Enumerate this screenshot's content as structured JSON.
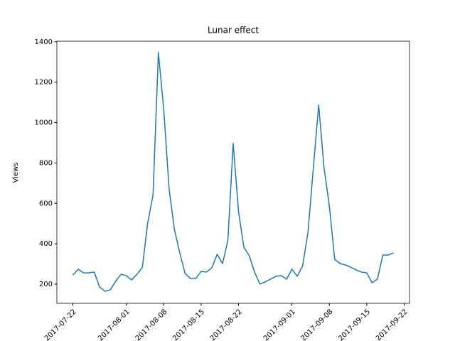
{
  "chart_data": {
    "type": "line",
    "title": "Lunar effect",
    "y_label": "Views",
    "x": [
      "2017-07-22",
      "2017-07-23",
      "2017-07-24",
      "2017-07-25",
      "2017-07-26",
      "2017-07-27",
      "2017-07-28",
      "2017-07-29",
      "2017-07-30",
      "2017-07-31",
      "2017-08-01",
      "2017-08-02",
      "2017-08-03",
      "2017-08-04",
      "2017-08-05",
      "2017-08-06",
      "2017-08-07",
      "2017-08-08",
      "2017-08-09",
      "2017-08-10",
      "2017-08-11",
      "2017-08-12",
      "2017-08-13",
      "2017-08-14",
      "2017-08-15",
      "2017-08-16",
      "2017-08-17",
      "2017-08-18",
      "2017-08-19",
      "2017-08-20",
      "2017-08-21",
      "2017-08-22",
      "2017-08-23",
      "2017-08-24",
      "2017-08-25",
      "2017-08-26",
      "2017-08-27",
      "2017-08-28",
      "2017-08-29",
      "2017-08-30",
      "2017-08-31",
      "2017-09-01",
      "2017-09-02",
      "2017-09-03",
      "2017-09-04",
      "2017-09-05",
      "2017-09-06",
      "2017-09-07",
      "2017-09-08",
      "2017-09-09",
      "2017-09-10",
      "2017-09-11",
      "2017-09-12",
      "2017-09-13",
      "2017-09-14",
      "2017-09-15",
      "2017-09-16",
      "2017-09-17",
      "2017-09-18",
      "2017-09-19",
      "2017-09-20"
    ],
    "series": [
      {
        "name": "Views",
        "color": "#1f77b4",
        "values": [
          245,
          274,
          256,
          256,
          260,
          186,
          165,
          172,
          214,
          249,
          242,
          221,
          249,
          284,
          503,
          643,
          1347,
          1066,
          672,
          471,
          355,
          253,
          228,
          228,
          263,
          260,
          281,
          348,
          302,
          415,
          897,
          559,
          383,
          341,
          260,
          200,
          211,
          225,
          239,
          242,
          225,
          274,
          239,
          291,
          457,
          774,
          1087,
          777,
          587,
          323,
          302,
          295,
          284,
          270,
          260,
          256,
          207,
          225,
          344,
          344,
          355
        ]
      }
    ],
    "xlim": [
      "2017-07-19",
      "2017-09-23"
    ],
    "xticks": [
      "2017-07-22",
      "2017-08-01",
      "2017-08-08",
      "2017-08-15",
      "2017-08-22",
      "2017-09-01",
      "2017-09-08",
      "2017-09-15",
      "2017-09-22"
    ],
    "ylim": [
      105,
      1403
    ],
    "yticks": [
      200,
      400,
      600,
      800,
      1000,
      1200,
      1400
    ]
  }
}
